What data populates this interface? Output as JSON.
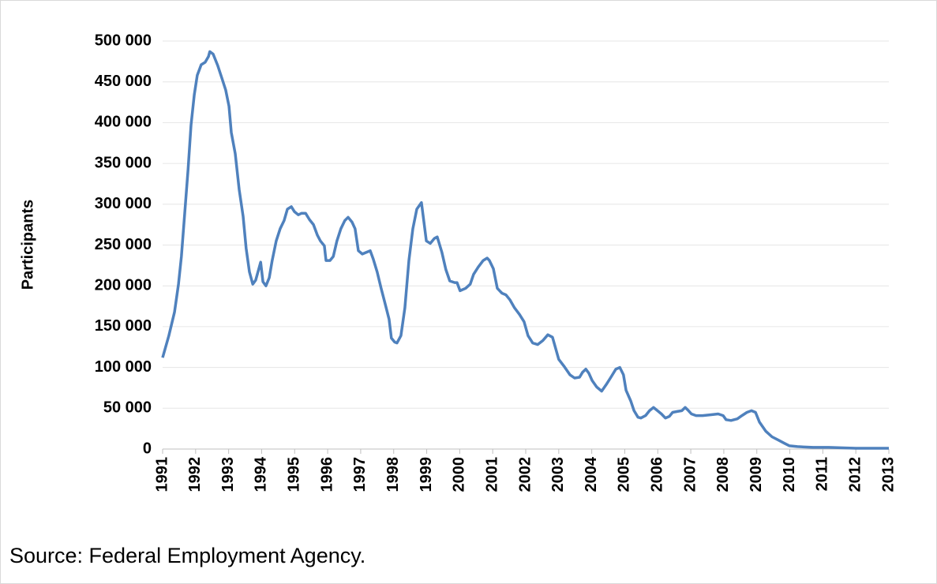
{
  "chart_data": {
    "type": "line",
    "y_label": "Participants",
    "source": "Source: Federal Employment Agency.",
    "xlim": [
      1991,
      2013
    ],
    "xticks": [
      1991,
      1992,
      1993,
      1994,
      1995,
      1996,
      1997,
      1998,
      1999,
      2000,
      2001,
      2002,
      2003,
      2004,
      2005,
      2006,
      2007,
      2008,
      2009,
      2010,
      2011,
      2012,
      2013
    ],
    "ylim": [
      0,
      500000
    ],
    "yticks": [
      {
        "value": 0,
        "label": "0"
      },
      {
        "value": 50000,
        "label": "50 000"
      },
      {
        "value": 100000,
        "label": "100 000"
      },
      {
        "value": 150000,
        "label": "150 000"
      },
      {
        "value": 200000,
        "label": "200 000"
      },
      {
        "value": 250000,
        "label": "250 000"
      },
      {
        "value": 300000,
        "label": "300 000"
      },
      {
        "value": 350000,
        "label": "350 000"
      },
      {
        "value": 400000,
        "label": "400 000"
      },
      {
        "value": 450000,
        "label": "450 000"
      },
      {
        "value": 500000,
        "label": "500 000"
      }
    ],
    "grid": true,
    "color": "#4f81bd",
    "x": [
      1991.0,
      1991.19,
      1991.36,
      1991.48,
      1991.57,
      1991.67,
      1991.77,
      1991.86,
      1991.96,
      1992.05,
      1992.17,
      1992.29,
      1992.39,
      1992.43,
      1992.53,
      1992.67,
      1992.79,
      1992.91,
      1993.01,
      1993.08,
      1993.2,
      1993.32,
      1993.44,
      1993.53,
      1993.63,
      1993.73,
      1993.82,
      1993.97,
      1994.04,
      1994.13,
      1994.23,
      1994.32,
      1994.44,
      1994.56,
      1994.68,
      1994.78,
      1994.9,
      1994.99,
      1995.11,
      1995.21,
      1995.33,
      1995.45,
      1995.57,
      1995.69,
      1995.78,
      1995.9,
      1995.95,
      1996.07,
      1996.17,
      1996.28,
      1996.4,
      1996.52,
      1996.62,
      1996.74,
      1996.83,
      1996.93,
      1997.05,
      1997.17,
      1997.29,
      1997.38,
      1997.5,
      1997.62,
      1997.74,
      1997.86,
      1997.93,
      1998.03,
      1998.1,
      1998.22,
      1998.34,
      1998.46,
      1998.58,
      1998.7,
      1998.84,
      1998.99,
      1999.11,
      1999.23,
      1999.32,
      1999.46,
      1999.58,
      1999.7,
      1999.85,
      1999.92,
      2000.01,
      2000.18,
      2000.32,
      2000.42,
      2000.56,
      2000.71,
      2000.83,
      2000.9,
      2001.02,
      2001.14,
      2001.28,
      2001.4,
      2001.52,
      2001.66,
      2001.81,
      2001.95,
      2002.07,
      2002.21,
      2002.36,
      2002.52,
      2002.67,
      2002.81,
      2003.0,
      2003.17,
      2003.34,
      2003.48,
      2003.63,
      2003.72,
      2003.82,
      2003.91,
      2004.01,
      2004.15,
      2004.3,
      2004.44,
      2004.58,
      2004.73,
      2004.85,
      2004.96,
      2005.04,
      2005.18,
      2005.28,
      2005.4,
      2005.49,
      2005.63,
      2005.75,
      2005.87,
      2005.99,
      2006.11,
      2006.23,
      2006.35,
      2006.45,
      2006.59,
      2006.73,
      2006.83,
      2006.93,
      2007.02,
      2007.16,
      2007.36,
      2007.59,
      2007.83,
      2007.98,
      2008.07,
      2008.22,
      2008.41,
      2008.55,
      2008.7,
      2008.84,
      2008.96,
      2009.08,
      2009.27,
      2009.46,
      2009.65,
      2009.84,
      2009.99,
      2010.23,
      2010.71,
      2011.18,
      2012.0,
      2013.0
    ],
    "values": [
      112000,
      139000,
      168000,
      202000,
      236000,
      289000,
      342000,
      397000,
      434000,
      458000,
      471000,
      474000,
      481000,
      487000,
      484000,
      470000,
      455000,
      440000,
      420000,
      388000,
      362000,
      318000,
      285000,
      246000,
      217000,
      202000,
      207000,
      229000,
      205000,
      200000,
      210000,
      231000,
      255000,
      270000,
      280000,
      294000,
      297000,
      291000,
      287000,
      289000,
      289000,
      281000,
      275000,
      262000,
      255000,
      249000,
      231000,
      231000,
      236000,
      255000,
      270000,
      280000,
      284000,
      278000,
      270000,
      243000,
      239000,
      241000,
      243000,
      233000,
      217000,
      197000,
      178000,
      159000,
      136000,
      131000,
      130000,
      139000,
      173000,
      231000,
      270000,
      294000,
      302000,
      255000,
      252000,
      258000,
      260000,
      241000,
      220000,
      206000,
      204000,
      204000,
      194000,
      197000,
      202000,
      214000,
      223000,
      231000,
      234000,
      231000,
      221000,
      197000,
      191000,
      189000,
      183000,
      173000,
      165000,
      156000,
      139000,
      130000,
      128000,
      133000,
      140000,
      137000,
      110000,
      101000,
      91000,
      87000,
      88000,
      94000,
      98000,
      93000,
      84000,
      76000,
      71000,
      79000,
      88000,
      98000,
      100000,
      91000,
      72000,
      59000,
      47000,
      39000,
      38000,
      41000,
      47000,
      51000,
      47000,
      43000,
      38000,
      40000,
      45000,
      46000,
      47000,
      51000,
      47000,
      43000,
      41000,
      41000,
      42000,
      43000,
      41000,
      36000,
      35000,
      37000,
      41000,
      45000,
      47000,
      45000,
      33000,
      22000,
      15000,
      11000,
      7000,
      4000,
      3000,
      2000,
      2000,
      1000,
      1000
    ]
  }
}
